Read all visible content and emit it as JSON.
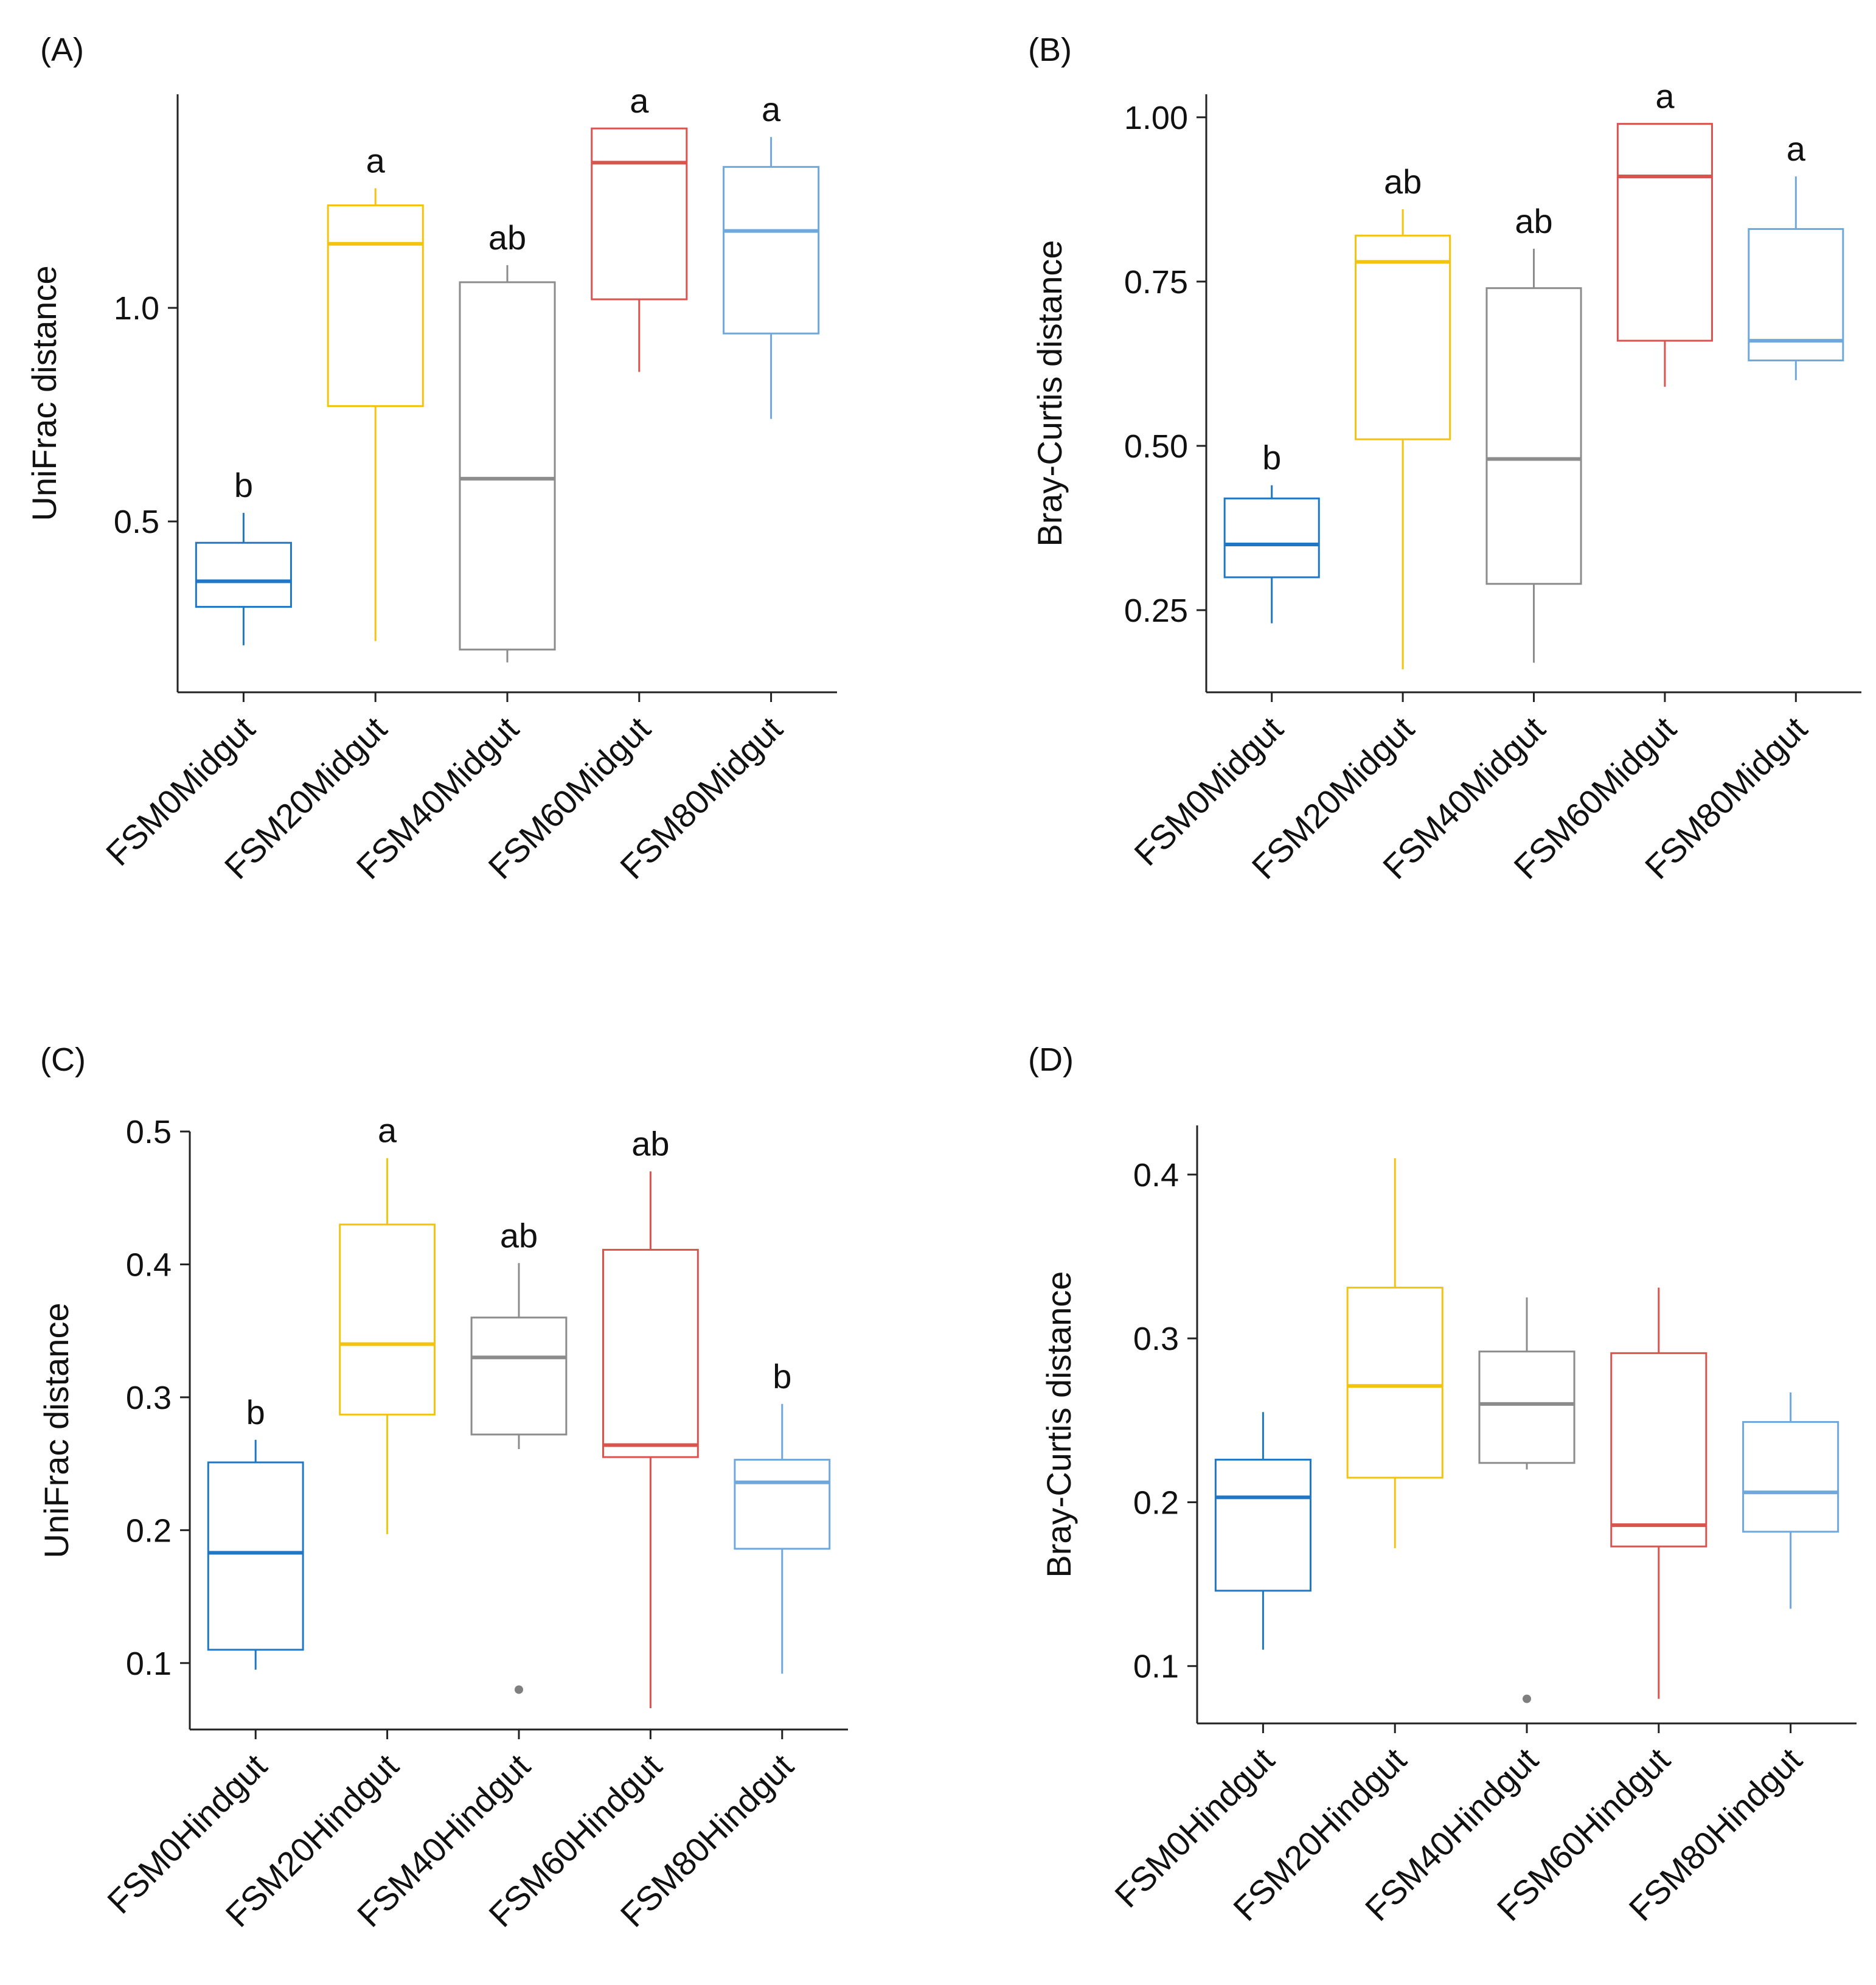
{
  "chart_data": [
    {
      "panel_label": "(A)",
      "type": "box",
      "ylabel": "UniFrac distance",
      "ylim": [
        0.1,
        1.5
      ],
      "yticks": [
        0.5,
        1.0
      ],
      "ytick_labels": [
        "0.5",
        "1.0"
      ],
      "categories": [
        "FSM0Midgut",
        "FSM20Midgut",
        "FSM40Midgut",
        "FSM60Midgut",
        "FSM80Midgut"
      ],
      "boxes": [
        {
          "min": 0.21,
          "q1": 0.3,
          "median": 0.36,
          "q3": 0.45,
          "max": 0.52,
          "outliers": [],
          "label": "b"
        },
        {
          "min": 0.22,
          "q1": 0.77,
          "median": 1.15,
          "q3": 1.24,
          "max": 1.28,
          "outliers": [],
          "label": "a"
        },
        {
          "min": 0.17,
          "q1": 0.2,
          "median": 0.6,
          "q3": 1.06,
          "max": 1.1,
          "outliers": [],
          "label": "ab"
        },
        {
          "min": 0.85,
          "q1": 1.02,
          "median": 1.34,
          "q3": 1.42,
          "max": 1.42,
          "outliers": [],
          "label": "a"
        },
        {
          "min": 0.74,
          "q1": 0.94,
          "median": 1.18,
          "q3": 1.33,
          "max": 1.4,
          "outliers": [],
          "label": "a"
        }
      ]
    },
    {
      "panel_label": "(B)",
      "type": "box",
      "ylabel": "Bray-Curtis distance",
      "ylim": [
        0.125,
        1.035
      ],
      "yticks": [
        0.25,
        0.5,
        0.75,
        1.0
      ],
      "ytick_labels": [
        "0.25",
        "0.50",
        "0.75",
        "1.00"
      ],
      "categories": [
        "FSM0Midgut",
        "FSM20Midgut",
        "FSM40Midgut",
        "FSM60Midgut",
        "FSM80Midgut"
      ],
      "boxes": [
        {
          "min": 0.23,
          "q1": 0.3,
          "median": 0.35,
          "q3": 0.42,
          "max": 0.44,
          "outliers": [],
          "label": "b"
        },
        {
          "min": 0.16,
          "q1": 0.51,
          "median": 0.78,
          "q3": 0.82,
          "max": 0.86,
          "outliers": [],
          "label": "ab"
        },
        {
          "min": 0.17,
          "q1": 0.29,
          "median": 0.48,
          "q3": 0.74,
          "max": 0.8,
          "outliers": [],
          "label": "ab"
        },
        {
          "min": 0.59,
          "q1": 0.66,
          "median": 0.91,
          "q3": 0.99,
          "max": 0.99,
          "outliers": [],
          "label": "a"
        },
        {
          "min": 0.6,
          "q1": 0.63,
          "median": 0.66,
          "q3": 0.83,
          "max": 0.91,
          "outliers": [],
          "label": "a"
        }
      ]
    },
    {
      "panel_label": "(C)",
      "type": "box",
      "ylabel": "UniFrac distance",
      "ylim": [
        0.05,
        0.5
      ],
      "yticks": [
        0.1,
        0.2,
        0.3,
        0.4,
        0.5
      ],
      "ytick_labels": [
        "0.1",
        "0.2",
        "0.3",
        "0.4",
        "0.5"
      ],
      "categories": [
        "FSM0Hindgut",
        "FSM20Hindgut",
        "FSM40Hindgut",
        "FSM60Hindgut",
        "FSM80Hindgut"
      ],
      "boxes": [
        {
          "min": 0.095,
          "q1": 0.11,
          "median": 0.183,
          "q3": 0.251,
          "max": 0.268,
          "outliers": [],
          "label": "b"
        },
        {
          "min": 0.197,
          "q1": 0.287,
          "median": 0.34,
          "q3": 0.43,
          "max": 0.48,
          "outliers": [],
          "label": "a"
        },
        {
          "min": 0.261,
          "q1": 0.272,
          "median": 0.33,
          "q3": 0.36,
          "max": 0.401,
          "outliers": [
            0.08
          ],
          "label": "ab"
        },
        {
          "min": 0.066,
          "q1": 0.255,
          "median": 0.264,
          "q3": 0.411,
          "max": 0.47,
          "outliers": [],
          "label": "ab"
        },
        {
          "min": 0.092,
          "q1": 0.186,
          "median": 0.236,
          "q3": 0.253,
          "max": 0.295,
          "outliers": [],
          "label": "b"
        }
      ]
    },
    {
      "panel_label": "(D)",
      "type": "box",
      "ylabel": "Bray-Curtis distance",
      "ylim": [
        0.065,
        0.43
      ],
      "yticks": [
        0.1,
        0.2,
        0.3,
        0.4
      ],
      "ytick_labels": [
        "0.1",
        "0.2",
        "0.3",
        "0.4"
      ],
      "categories": [
        "FSM0Hindgut",
        "FSM20Hindgut",
        "FSM40Hindgut",
        "FSM60Hindgut",
        "FSM80Hindgut"
      ],
      "boxes": [
        {
          "min": 0.11,
          "q1": 0.146,
          "median": 0.203,
          "q3": 0.226,
          "max": 0.255,
          "outliers": [],
          "label": ""
        },
        {
          "min": 0.172,
          "q1": 0.215,
          "median": 0.271,
          "q3": 0.331,
          "max": 0.41,
          "outliers": [],
          "label": ""
        },
        {
          "min": 0.22,
          "q1": 0.224,
          "median": 0.26,
          "q3": 0.292,
          "max": 0.325,
          "outliers": [
            0.08
          ],
          "label": ""
        },
        {
          "min": 0.08,
          "q1": 0.173,
          "median": 0.186,
          "q3": 0.291,
          "max": 0.331,
          "outliers": [],
          "label": ""
        },
        {
          "min": 0.135,
          "q1": 0.182,
          "median": 0.206,
          "q3": 0.249,
          "max": 0.267,
          "outliers": [],
          "label": ""
        }
      ]
    }
  ],
  "colors": [
    "#1f77c6",
    "#f2c30f",
    "#8c8c8c",
    "#d9534f",
    "#6fa8dc"
  ]
}
